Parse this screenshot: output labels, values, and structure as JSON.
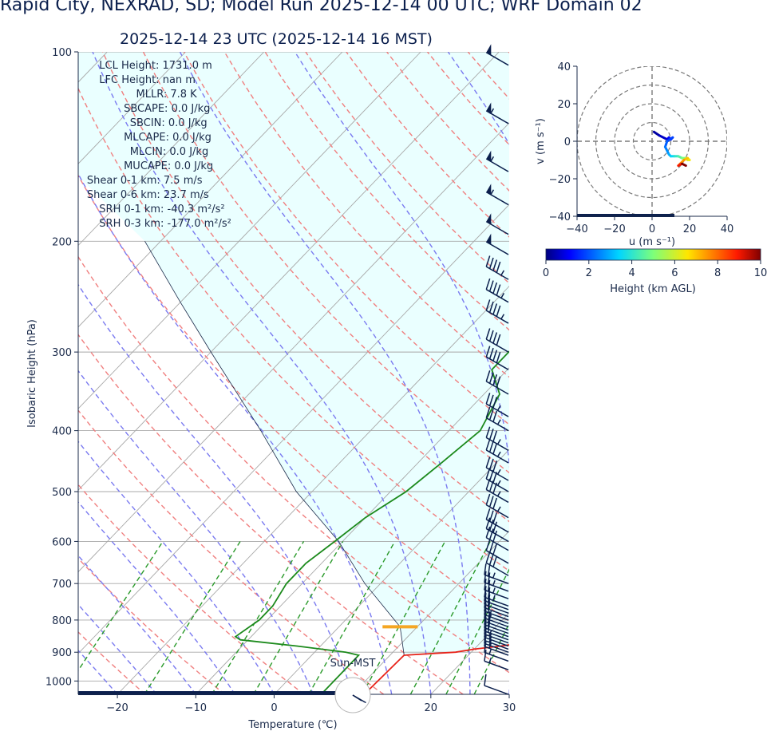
{
  "header": {
    "title": "Rapid City, NEXRAD, SD; Model Run 2025-12-14 00 UTC; WRF Domain 02",
    "subtitle": "2025-12-14 23 UTC  (2025-12-14 16 MST)"
  },
  "indices": [
    "LCL Height: 1731.0 m",
    "LFC Height: nan m",
    "MLLR: 7.8 K",
    "SBCAPE: 0.0 J/kg",
    "SBCIN: 0.0 J/kg",
    "MLCAPE: 0.0 J/kg",
    "MLCIN: 0.0 J/kg",
    "MUCAPE: 0.0 J/kg",
    "Shear 0-1 km: 7.5 m/s",
    "Shear 0-6 km: 23.7 m/s",
    "SRH 0-1 km: -40.3 m²/s²",
    "SRH 0-3 km: -177.0 m²/s²"
  ],
  "sun_label": "Sun-MST",
  "colors": {
    "temperature": "#e8231a",
    "dewpoint": "#1c8a1c",
    "dry_adiabat": "#f07f7f",
    "moist_adiabat": "#7a7af0",
    "mixing_ratio": "#2a9a2a",
    "isotherm": "#a8a8a8",
    "parcel": "#1a2a4a",
    "cape_shade": "#eaffff",
    "lcl_marker": "#f5a623",
    "barbs": "#0b1f4d",
    "text": "#1a2a4a"
  },
  "chart_data": [
    {
      "type": "line",
      "name": "skew-t",
      "xlabel": "Temperature (℃)",
      "ylabel": "Isobaric Height (hPa)",
      "xlim": [
        -25,
        30
      ],
      "ylim": [
        1050,
        100
      ],
      "y_scale": "log",
      "x_ticks": [
        -20,
        -10,
        0,
        10,
        20,
        30
      ],
      "x_tick_labels": [
        "−20",
        "−10",
        "0",
        "10",
        "20",
        "30"
      ],
      "y_ticks": [
        100,
        200,
        300,
        400,
        500,
        600,
        700,
        800,
        900,
        1000
      ],
      "grid": true,
      "temperature": {
        "p": [
          1050,
          910,
          900,
          890,
          880,
          870,
          860,
          850,
          830,
          800,
          760,
          700,
          650,
          600,
          550,
          500,
          450,
          400,
          350,
          300,
          250,
          220,
          200,
          170,
          140,
          120,
          100
        ],
        "t": [
          11.5,
          11.8,
          18,
          20,
          23,
          25.5,
          26.4,
          26.5,
          25,
          23,
          21,
          19,
          17.5,
          16,
          14.5,
          12.5,
          10.5,
          8,
          5.5,
          3,
          1,
          1,
          3,
          7,
          11,
          13,
          15
        ]
      },
      "dewpoint": {
        "p": [
          1050,
          910,
          900,
          880,
          860,
          850,
          800,
          760,
          700,
          650,
          600,
          550,
          500,
          450,
          400,
          350,
          320,
          250,
          220,
          200,
          170,
          140,
          120,
          100
        ],
        "t": [
          6,
          6,
          4,
          -3,
          -11,
          -12,
          -11,
          -11,
          -12,
          -12,
          -11,
          -10,
          -8,
          -7,
          -6,
          -8,
          -12,
          -12,
          -13,
          -16,
          -21,
          -27,
          -25,
          -21
        ]
      },
      "parcel": {
        "p": [
          1050,
          910,
          820,
          700,
          600,
          500,
          400,
          300,
          250,
          200
        ],
        "t": [
          11.5,
          11.8,
          7.8,
          -2,
          -10.5,
          -22,
          -34,
          -50,
          -60,
          -72
        ]
      },
      "wind_barbs": {
        "p": [
          1050,
          960,
          930,
          910,
          900,
          890,
          880,
          870,
          860,
          850,
          840,
          830,
          820,
          810,
          800,
          790,
          780,
          770,
          760,
          740,
          720,
          700,
          680,
          650,
          620,
          600,
          580,
          550,
          520,
          500,
          480,
          450,
          430,
          400,
          380,
          350,
          320,
          300,
          270,
          250,
          230,
          210,
          195,
          175,
          155,
          130,
          105
        ],
        "speed_kt": [
          10,
          15,
          15,
          15,
          15,
          15,
          15,
          15,
          20,
          20,
          20,
          20,
          15,
          15,
          20,
          20,
          20,
          20,
          25,
          25,
          25,
          25,
          30,
          30,
          30,
          30,
          30,
          35,
          35,
          35,
          35,
          35,
          35,
          35,
          35,
          40,
          40,
          40,
          45,
          45,
          45,
          50,
          50,
          55,
          55,
          55,
          50
        ]
      },
      "lcl_hpa": 820,
      "sun_hour_mst": 16
    },
    {
      "type": "line",
      "name": "hodograph",
      "xlabel": "u (m s⁻¹)",
      "ylabel": "v (m s⁻¹)",
      "xlim": [
        -40,
        40
      ],
      "ylim": [
        -40,
        40
      ],
      "x_ticks": [
        -40,
        -20,
        0,
        20,
        40
      ],
      "x_tick_labels": [
        "−40",
        "−20",
        "0",
        "20",
        "40"
      ],
      "y_ticks": [
        40,
        20,
        0,
        -20,
        -40
      ],
      "y_tick_labels": [
        "40",
        "20",
        "0",
        "−20",
        "−40"
      ],
      "rings": [
        10,
        20,
        30,
        40
      ],
      "u": [
        1,
        4,
        8,
        9,
        10,
        11,
        8,
        7,
        8,
        9,
        10,
        12,
        14,
        16,
        18,
        19,
        20,
        19,
        17,
        15,
        14,
        16,
        18
      ],
      "v": [
        5,
        3,
        1,
        2,
        1,
        2,
        0,
        -3,
        -5,
        -7,
        -8,
        -8,
        -8,
        -9,
        -9,
        -10,
        -10,
        -9,
        -10,
        -12,
        -13,
        -12,
        -13
      ],
      "height_km": [
        0,
        0.3,
        0.6,
        0.9,
        1.2,
        1.5,
        1.8,
        2.1,
        2.4,
        2.7,
        3,
        3.5,
        4,
        4.5,
        5,
        5.5,
        6,
        6.5,
        7,
        7.5,
        8,
        9,
        10
      ]
    },
    {
      "type": "heatmap",
      "name": "height-colorbar",
      "label": "Height (km AGL)",
      "range": [
        0,
        10
      ],
      "ticks": [
        0,
        2,
        4,
        6,
        8,
        10
      ]
    }
  ]
}
